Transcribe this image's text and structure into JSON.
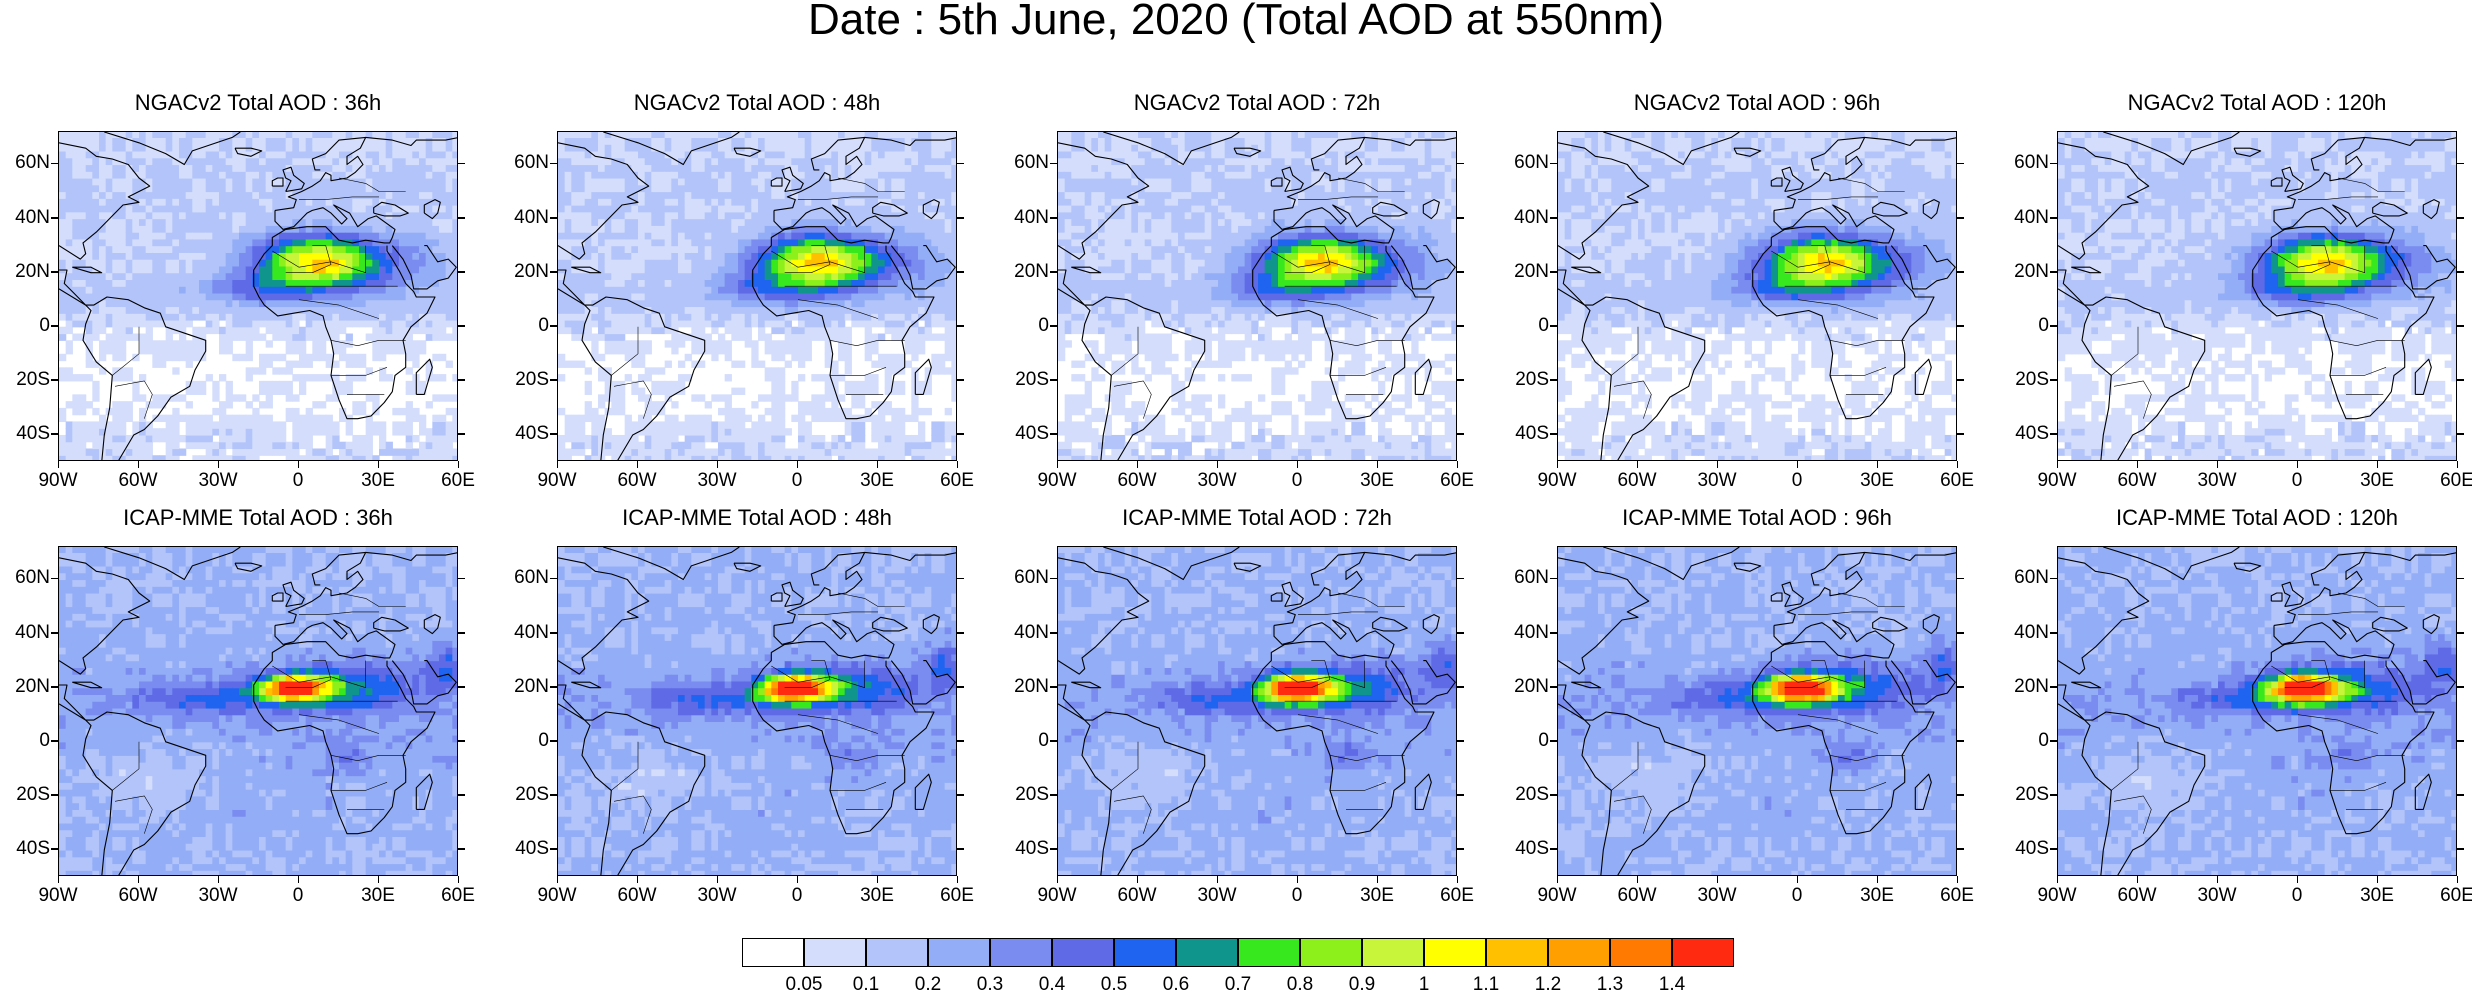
{
  "title": "Date : 5th June, 2020 (Total AOD at 550nm)",
  "rows": [
    {
      "model": "NGACv2",
      "panels": [
        {
          "title": "NGACv2 Total AOD : 36h",
          "lead": "36h"
        },
        {
          "title": "NGACv2 Total AOD : 48h",
          "lead": "48h"
        },
        {
          "title": "NGACv2 Total AOD : 72h",
          "lead": "72h"
        },
        {
          "title": "NGACv2 Total AOD : 96h",
          "lead": "96h"
        },
        {
          "title": "NGACv2 Total AOD : 120h",
          "lead": "120h"
        }
      ]
    },
    {
      "model": "ICAP-MME",
      "panels": [
        {
          "title": "ICAP-MME Total AOD : 36h",
          "lead": "36h"
        },
        {
          "title": "ICAP-MME Total AOD : 48h",
          "lead": "48h"
        },
        {
          "title": "ICAP-MME Total AOD : 72h",
          "lead": "72h"
        },
        {
          "title": "ICAP-MME Total AOD : 96h",
          "lead": "96h"
        },
        {
          "title": "ICAP-MME Total AOD : 120h",
          "lead": "120h"
        }
      ]
    }
  ],
  "latitude_labels": [
    "60N",
    "40N",
    "20N",
    "0",
    "20S",
    "40S"
  ],
  "longitude_labels": [
    "90W",
    "60W",
    "30W",
    "0",
    "30E",
    "60E"
  ],
  "colorbar": {
    "labels": [
      "0.05",
      "0.1",
      "0.2",
      "0.3",
      "0.4",
      "0.5",
      "0.6",
      "0.7",
      "0.8",
      "0.9",
      "1",
      "1.1",
      "1.2",
      "1.3",
      "1.4"
    ],
    "colors": [
      "#ffffff",
      "#d4defc",
      "#b3c4fa",
      "#93aef6",
      "#7a8cf0",
      "#5e6ae6",
      "#1f64f0",
      "#10958d",
      "#38e81e",
      "#8ef01a",
      "#c8f53a",
      "#ffff00",
      "#ffc000",
      "#ffa000",
      "#ff7a00",
      "#ff2a10"
    ]
  },
  "colors": {
    "land_outline": "#000000",
    "background": "#ffffff"
  }
}
